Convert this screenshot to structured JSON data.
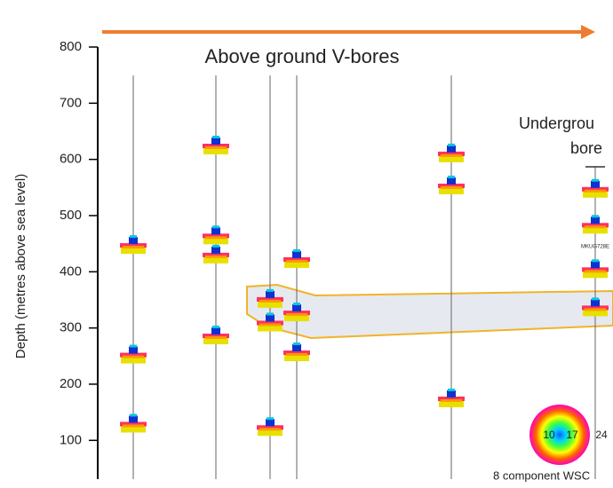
{
  "chart_data": {
    "type": "borehole",
    "title": "Above ground V-bores",
    "y_label": "Depth (metres above sea level)",
    "side_title": [
      "Undergrou",
      "bore"
    ],
    "ylim": [
      31,
      800
    ],
    "yticks": [
      800,
      700,
      600,
      500,
      400,
      300,
      200,
      100
    ],
    "boreholes": [
      {
        "values": [
          443,
          248,
          125
        ]
      },
      {
        "values": [
          620,
          460,
          426,
          282
        ]
      },
      {
        "values": [
          347,
          305,
          119
        ]
      },
      {
        "values": [
          418,
          323,
          252
        ]
      },
      {
        "values": [
          606,
          549,
          170
        ]
      },
      {
        "values": [
          543,
          479,
          400,
          332
        ]
      }
    ],
    "glyph_label": "MKUG728E",
    "legend": {
      "rings": [
        "10",
        "17",
        "24"
      ],
      "title": "8 component WSC"
    }
  }
}
